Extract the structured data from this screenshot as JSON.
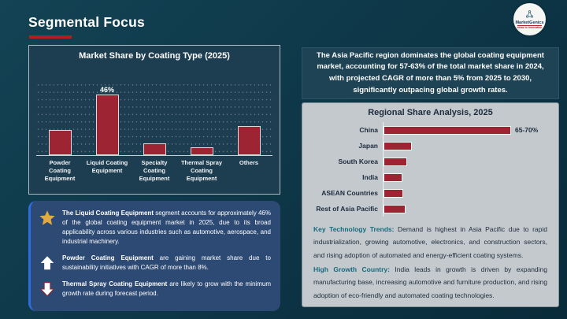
{
  "slide": {
    "title": "Segmental Focus",
    "logo": {
      "brand": "MarketGenics",
      "tagline": "Ideas to Innovation"
    }
  },
  "left_panel": {
    "insights": [
      {
        "icon": "star",
        "lead": "The Liquid Coating Equipment",
        "text": "segment accounts for approximately 46% of the global coating equipment market in 2025, due to its broad applicability across various industries such as automotive, aerospace, and industrial machinery."
      },
      {
        "icon": "up-arrow",
        "lead": "Powder Coating Equipment",
        "text": "are gaining market share due to sustainability initiatives with CAGR of more than 8%."
      },
      {
        "icon": "down-arrow",
        "lead": "Thermal Spray Coating Equipment",
        "text": "are likely to grow with the minimum growth rate during forecast period."
      }
    ]
  },
  "right_panel": {
    "highlight": "The Asia Pacific region dominates the global coating equipment market, accounting for 57-63% of the total market share in 2024, with projected CAGR of more than 5% from 2025 to 2030, significantly outpacing global growth rates.",
    "notes": [
      {
        "lead": "Key Technology Trends:",
        "text": "Demand is highest in Asia Pacific due to rapid industrialization, growing automotive, electronics, and construction sectors, and rising adoption of automated and energy-efficient coating systems."
      },
      {
        "lead": "High Growth Country:",
        "text": "India leads in growth is driven by expanding manufacturing base, increasing automotive and furniture production, and rising adoption of eco-friendly and automated coating technologies."
      }
    ]
  },
  "chart_data": [
    {
      "type": "bar",
      "orientation": "vertical",
      "title": "Market Share by Coating Type (2025)",
      "categories": [
        "Powder Coating Equipment",
        "Liquid Coating Equipment",
        "Specialty Coating Equipment",
        "Thermal Spray Coating Equipment",
        "Others"
      ],
      "values": [
        19,
        46,
        9,
        6,
        22
      ],
      "data_labels": [
        "",
        "46%",
        "",
        "",
        ""
      ],
      "unit": "%",
      "ylim": [
        0,
        50
      ],
      "grid": "dotted-horizontal",
      "bar_color": "#9c2433"
    },
    {
      "type": "bar",
      "orientation": "horizontal",
      "title": "Regional Share Analysis, 2025",
      "categories": [
        "China",
        "Japan",
        "South Korea",
        "India",
        "ASEAN Countries",
        "Rest of Asia Pacific"
      ],
      "values": [
        67.5,
        15,
        12.5,
        10,
        10.5,
        11.5
      ],
      "data_labels": [
        "65-70%",
        "",
        "",
        "",
        "",
        ""
      ],
      "unit": "%",
      "xlim": [
        0,
        75
      ],
      "bar_color": "#9c2433"
    }
  ],
  "colors": {
    "bar_fill": "#9c2433",
    "accent_red": "#b11f24",
    "panel_teal": "#1d3d50",
    "card_gray": "#c4c9cd",
    "insight_blue": "#2d4a74",
    "insight_accent": "#2c6ede",
    "lead_teal": "#17697d",
    "star_gold": "#e3aa3d"
  }
}
